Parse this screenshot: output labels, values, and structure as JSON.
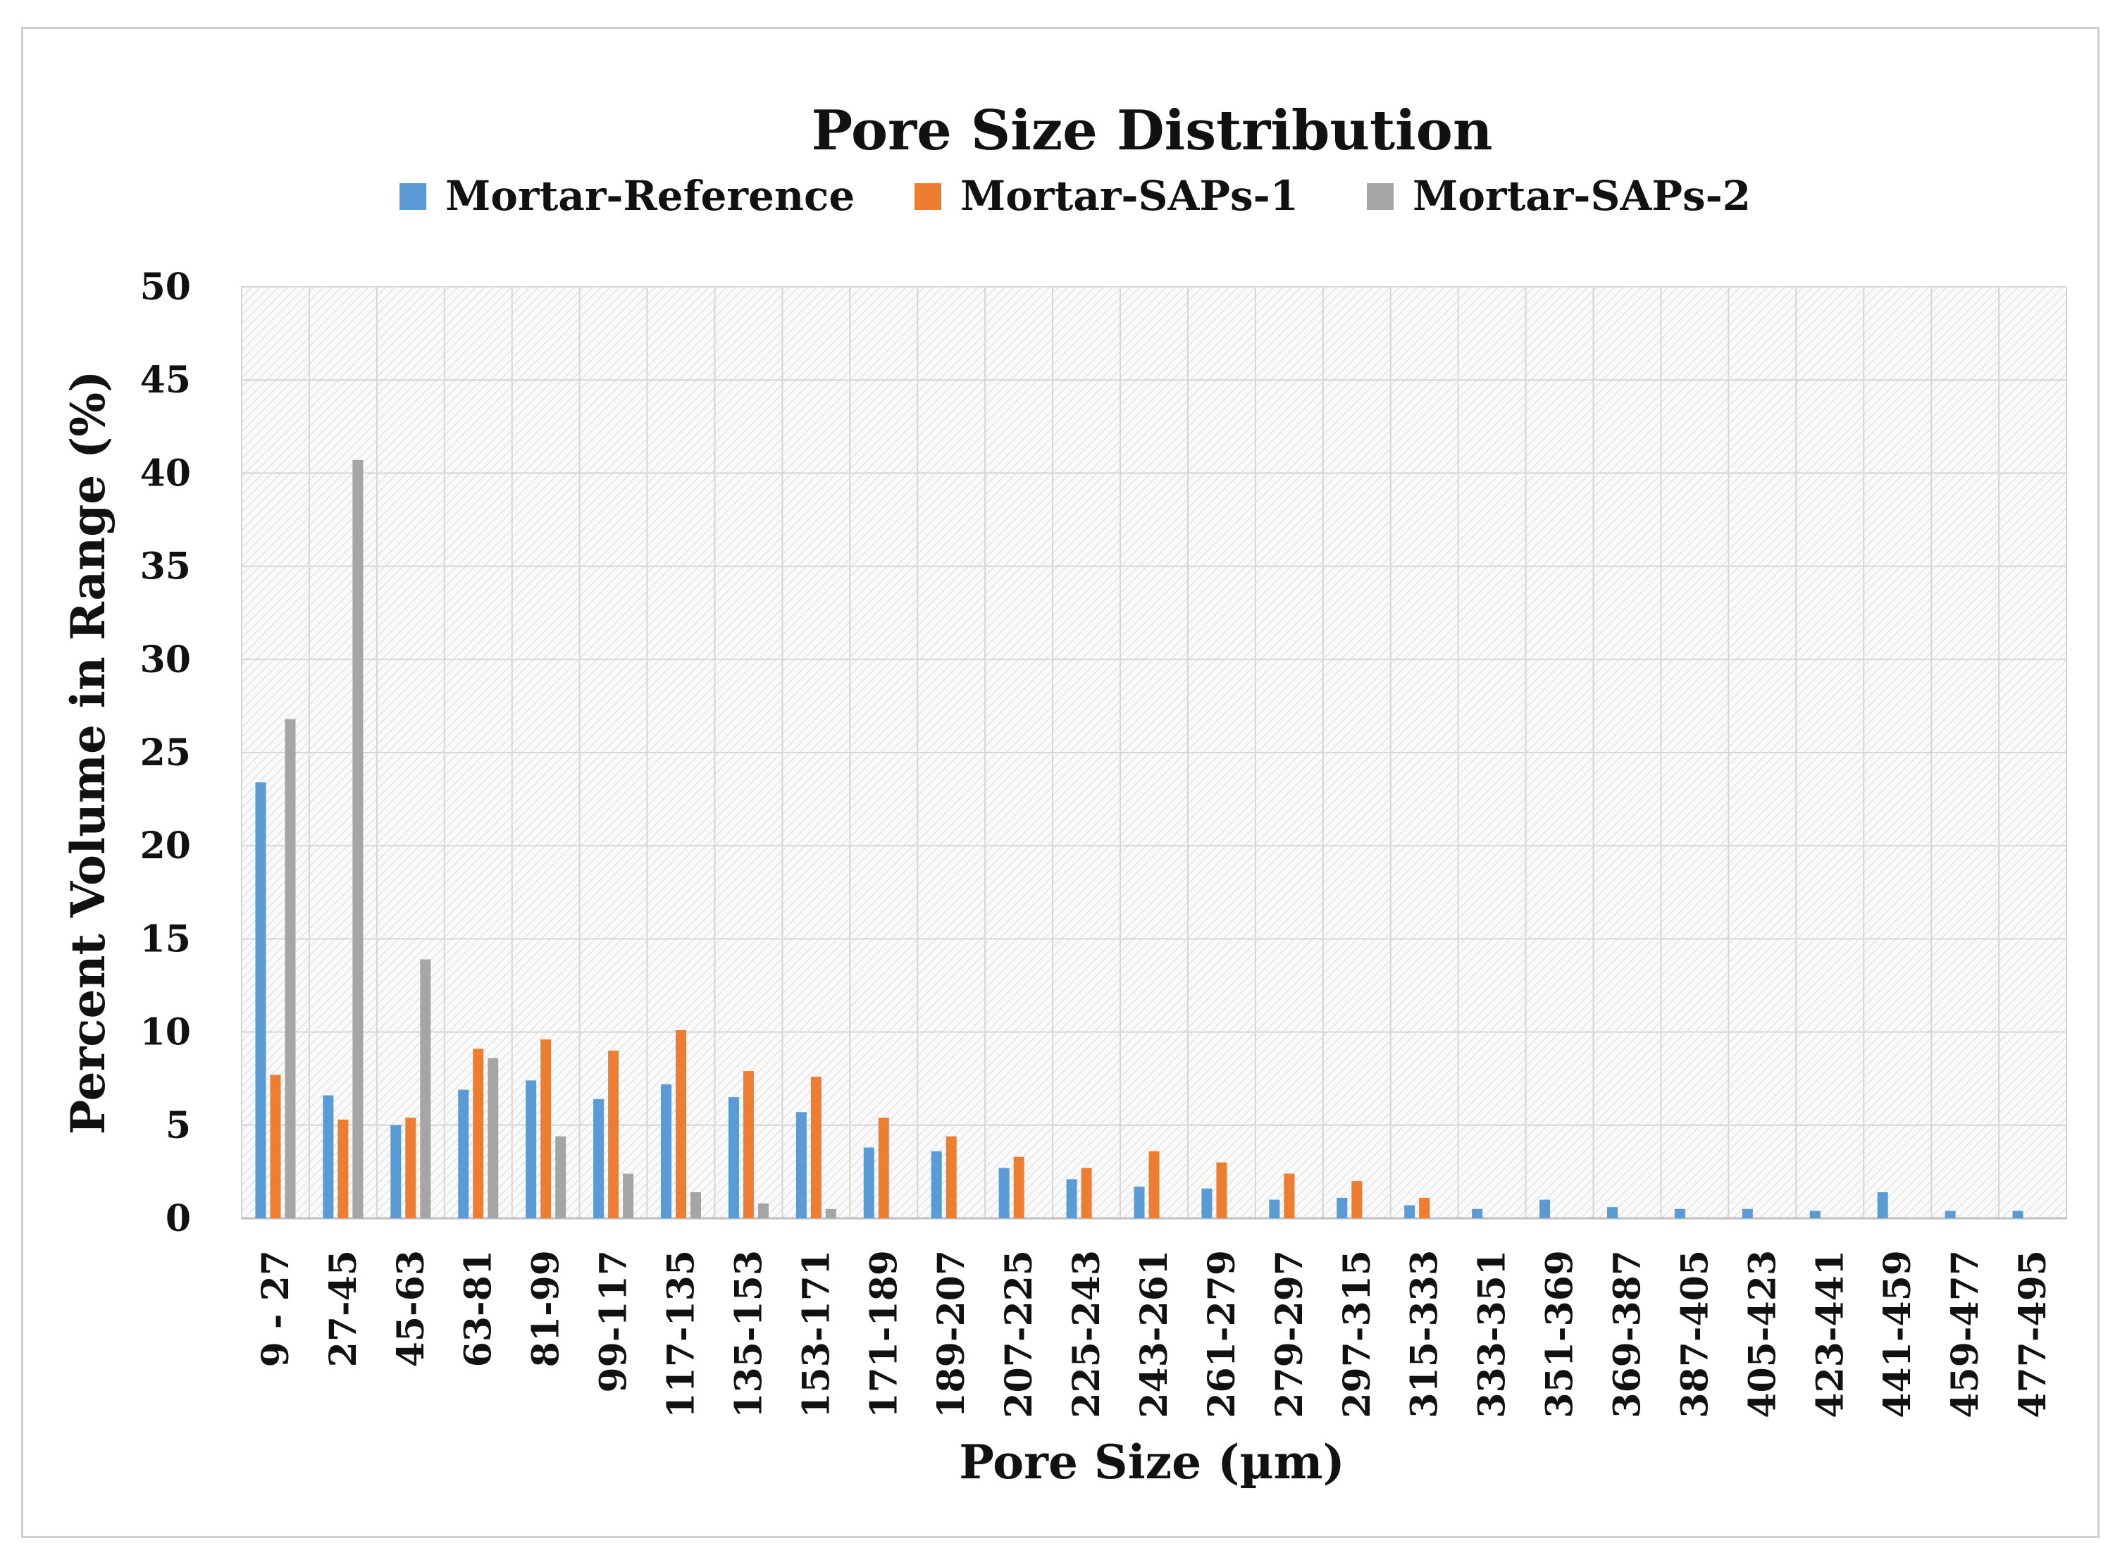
{
  "chart_data": {
    "type": "bar",
    "title": "Pore Size Distribution",
    "xlabel": "Pore Size (µm)",
    "ylabel": "Percent Volume in Range (%)",
    "ylim": [
      0,
      50
    ],
    "yticks": [
      0,
      5,
      10,
      15,
      20,
      25,
      30,
      35,
      40,
      45,
      50
    ],
    "grid": true,
    "legend_position": "top",
    "categories": [
      "9 - 27",
      "27-45",
      "45-63",
      "63-81",
      "81-99",
      "99-117",
      "117-135",
      "135-153",
      "153-171",
      "171-189",
      "189-207",
      "207-225",
      "225-243",
      "243-261",
      "261-279",
      "279-297",
      "297-315",
      "315-333",
      "333-351",
      "351-369",
      "369-387",
      "387-405",
      "405-423",
      "423-441",
      "441-459",
      "459-477",
      "477-495"
    ],
    "series": [
      {
        "name": "Mortar-Reference",
        "color": "#5b9bd5",
        "values": [
          23.4,
          6.6,
          5.0,
          6.9,
          7.4,
          6.4,
          7.2,
          6.5,
          5.7,
          3.8,
          3.6,
          2.7,
          2.1,
          1.7,
          1.6,
          1.0,
          1.1,
          0.7,
          0.5,
          1.0,
          0.6,
          0.5,
          0.5,
          0.4,
          1.4,
          0.4,
          0.4
        ]
      },
      {
        "name": "Mortar-SAPs-1",
        "color": "#ed7d31",
        "values": [
          7.7,
          5.3,
          5.4,
          9.1,
          9.6,
          9.0,
          10.1,
          7.9,
          7.6,
          5.4,
          4.4,
          3.3,
          2.7,
          3.6,
          3.0,
          2.4,
          2.0,
          1.1,
          0,
          0,
          0,
          0,
          0,
          0,
          0,
          0,
          0
        ]
      },
      {
        "name": "Mortar-SAPs-2",
        "color": "#a5a5a5",
        "values": [
          26.8,
          40.7,
          13.9,
          8.6,
          4.4,
          2.4,
          1.4,
          0.8,
          0.5,
          0,
          0,
          0,
          0,
          0,
          0,
          0,
          0,
          0,
          0,
          0,
          0,
          0,
          0,
          0,
          0,
          0,
          0
        ]
      }
    ]
  }
}
